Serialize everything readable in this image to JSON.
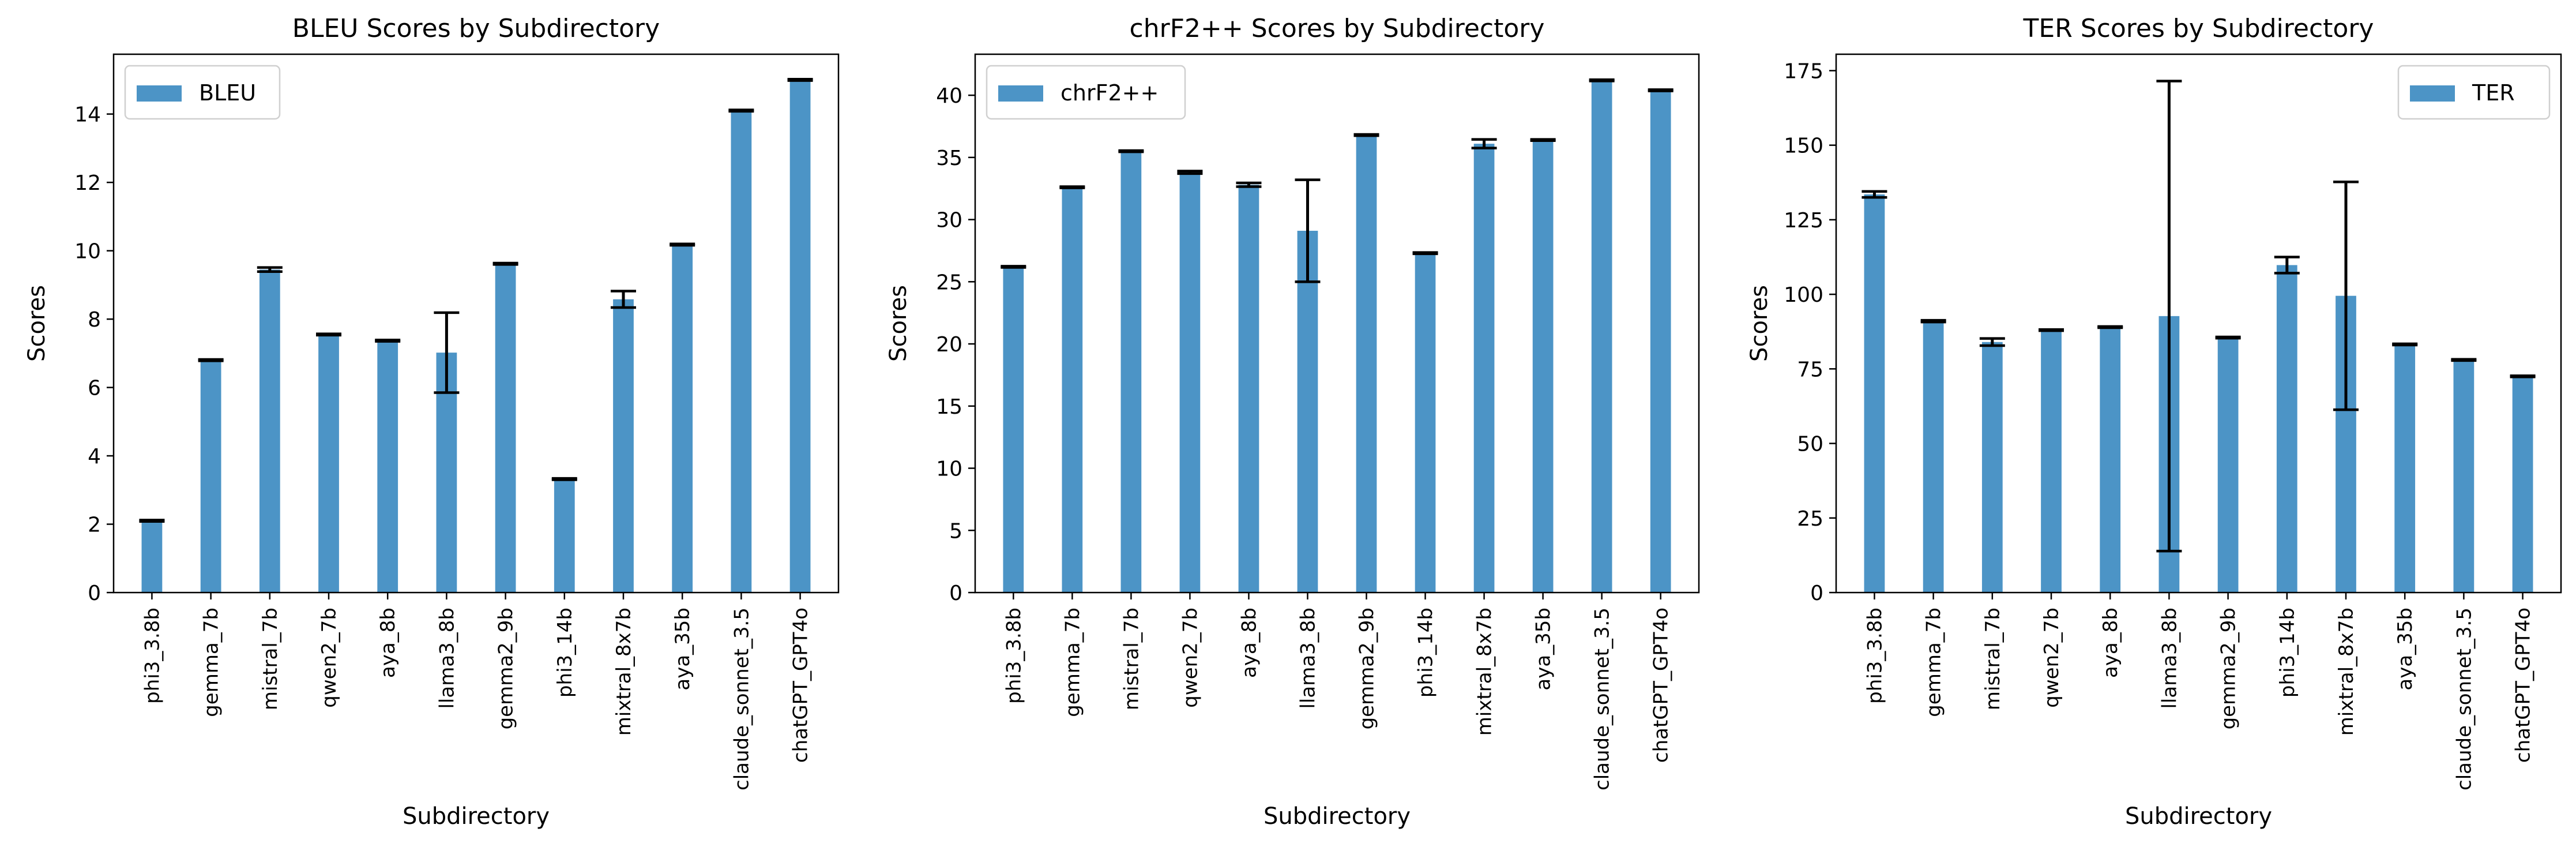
{
  "page": {
    "background": "#ffffff",
    "bar_color": "#4c94c6",
    "error_color": "#000000"
  },
  "chart_data": [
    {
      "type": "bar",
      "title": "BLEU Scores by Subdirectory",
      "xlabel": "Subdirectory",
      "ylabel": "Scores",
      "categories": [
        "phi3_3.8b",
        "gemma_7b",
        "mistral_7b",
        "qwen2_7b",
        "aya_8b",
        "llama3_8b",
        "gemma2_9b",
        "phi3_14b",
        "mixtral_8x7b",
        "aya_35b",
        "claude_sonnet_3.5",
        "chatGPT_GPT4o"
      ],
      "series": [
        {
          "name": "BLEU",
          "values": [
            2.1,
            6.8,
            9.45,
            7.55,
            7.37,
            7.02,
            9.62,
            3.32,
            8.58,
            10.18,
            14.1,
            15.0
          ],
          "errors": [
            0.02,
            0.02,
            0.06,
            0.02,
            0.02,
            1.17,
            0.02,
            0.02,
            0.24,
            0.02,
            0.02,
            0.02
          ]
        }
      ],
      "ylim": [
        0,
        15.75
      ],
      "yticks": [
        0,
        2,
        4,
        6,
        8,
        10,
        12,
        14
      ],
      "ytick_labels": [
        "0",
        "2",
        "4",
        "6",
        "8",
        "10",
        "12",
        "14"
      ],
      "legend_position": "upper-left",
      "grid": false
    },
    {
      "type": "bar",
      "title": "chrF2++ Scores by Subdirectory",
      "xlabel": "Subdirectory",
      "ylabel": "Scores",
      "categories": [
        "phi3_3.8b",
        "gemma_7b",
        "mistral_7b",
        "qwen2_7b",
        "aya_8b",
        "llama3_8b",
        "gemma2_9b",
        "phi3_14b",
        "mixtral_8x7b",
        "aya_35b",
        "claude_sonnet_3.5",
        "chatGPT_GPT4o"
      ],
      "series": [
        {
          "name": "chrF2++",
          "values": [
            26.2,
            32.6,
            35.5,
            33.8,
            32.8,
            29.1,
            36.8,
            27.3,
            36.1,
            36.4,
            41.2,
            40.4
          ],
          "errors": [
            0.05,
            0.05,
            0.05,
            0.1,
            0.15,
            4.1,
            0.05,
            0.05,
            0.35,
            0.05,
            0.05,
            0.05
          ]
        }
      ],
      "ylim": [
        0,
        43.3
      ],
      "yticks": [
        0,
        5,
        10,
        15,
        20,
        25,
        30,
        35,
        40
      ],
      "ytick_labels": [
        "0",
        "5",
        "10",
        "15",
        "20",
        "25",
        "30",
        "35",
        "40"
      ],
      "legend_position": "upper-left",
      "grid": false
    },
    {
      "type": "bar",
      "title": "TER Scores by Subdirectory",
      "xlabel": "Subdirectory",
      "ylabel": "Scores",
      "categories": [
        "phi3_3.8b",
        "gemma_7b",
        "mistral_7b",
        "qwen2_7b",
        "aya_8b",
        "llama3_8b",
        "gemma2_9b",
        "phi3_14b",
        "mixtral_8x7b",
        "aya_35b",
        "claude_sonnet_3.5",
        "chatGPT_GPT4o"
      ],
      "series": [
        {
          "name": "TER",
          "values": [
            133.5,
            91.0,
            84.0,
            88.0,
            89.0,
            92.7,
            85.5,
            109.8,
            99.5,
            83.2,
            78.0,
            72.5
          ],
          "errors": [
            1.0,
            0.3,
            1.2,
            0.2,
            0.2,
            78.8,
            0.2,
            2.7,
            38.2,
            0.2,
            0.2,
            0.2
          ]
        }
      ],
      "ylim": [
        0,
        180.5
      ],
      "yticks": [
        0,
        25,
        50,
        75,
        100,
        125,
        150,
        175
      ],
      "ytick_labels": [
        "0",
        "25",
        "50",
        "75",
        "100",
        "125",
        "150",
        "175"
      ],
      "legend_position": "upper-right",
      "grid": false
    }
  ]
}
